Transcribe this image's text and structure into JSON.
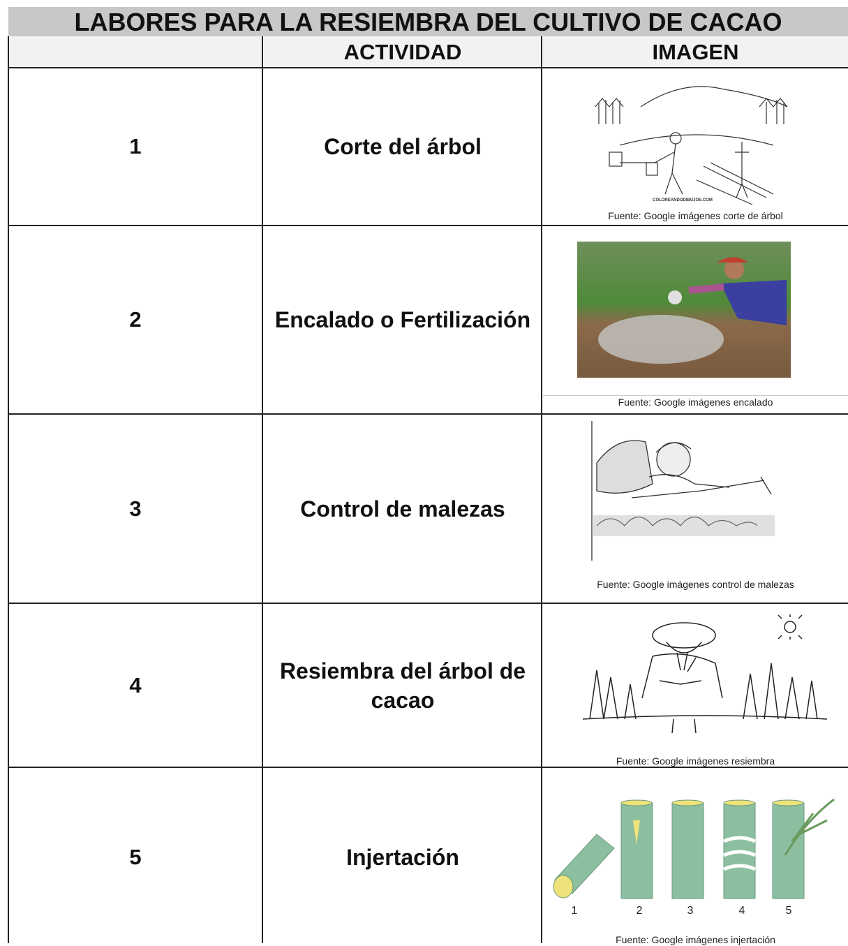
{
  "title": "LABORES PARA LA RESIEMBRA DEL CULTIVO DE CACAO",
  "headers": [
    "ACTIVIDAD",
    "IMAGEN"
  ],
  "rows": [
    {
      "number": 1,
      "activity": "Corte del árbol",
      "watermark": "COLOREANDODIBUJOS.COM",
      "caption": "Fuente: Google imágenes corte de árbol"
    },
    {
      "number": 2,
      "activity": "Encalado o Fertilización",
      "caption": "Fuente: Google imágenes encalado"
    },
    {
      "number": 3,
      "activity": "Control de malezas",
      "caption": "Fuente: Google imágenes control de malezas"
    },
    {
      "number": 4,
      "activity": "Resiembra del árbol de cacao",
      "caption": "Fuente: Google imágenes resiembra"
    },
    {
      "number": 5,
      "activity": "Injertación",
      "step_labels": [
        1,
        2,
        3,
        4,
        5
      ],
      "caption": "Fuente: Google imágenes injertación"
    }
  ]
}
